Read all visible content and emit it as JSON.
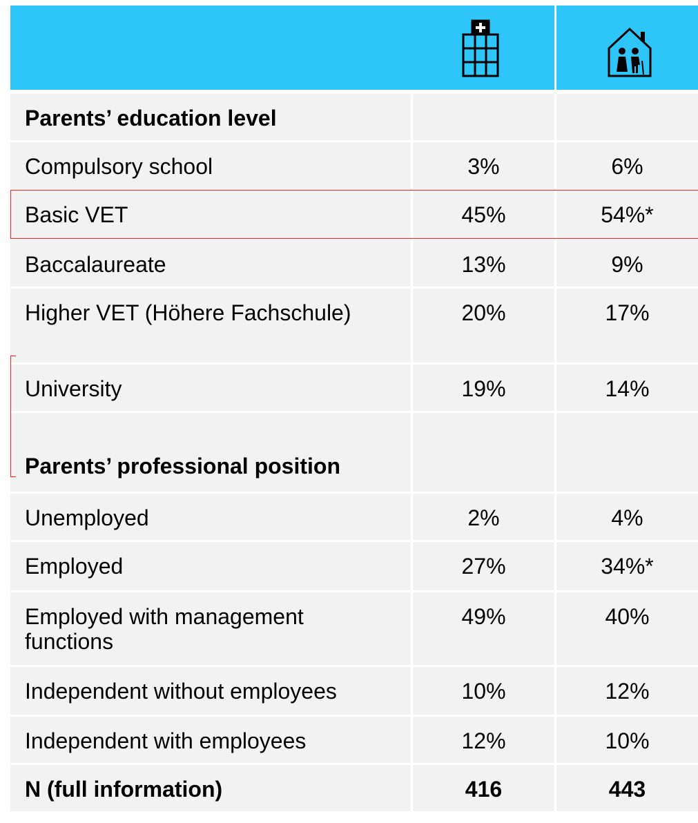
{
  "table": {
    "rows": [
      [
        "Parents’ education level"
      ],
      [
        "Compulsory school",
        "3%",
        "6%"
      ],
      [
        "Basic VET",
        "45%",
        "54%*"
      ],
      [
        "Baccalaureate",
        "13%",
        "9%"
      ],
      [
        "Higher VET (Höhere Fachschule)",
        "20%",
        "17%"
      ],
      [
        "University",
        "19%",
        "14%"
      ],
      [
        "Parents’ professional position"
      ],
      [
        "Unemployed",
        "2%",
        "4%"
      ],
      [
        "Employed",
        "27%",
        "34%*"
      ],
      [
        "Employed with management functions",
        "49%",
        "40%"
      ],
      [
        "Independent without employees",
        "10%",
        "12%"
      ],
      [
        "Independent with employees",
        "12%",
        "10%"
      ],
      [
        "N (full information)",
        416,
        443
      ]
    ]
  }
}
